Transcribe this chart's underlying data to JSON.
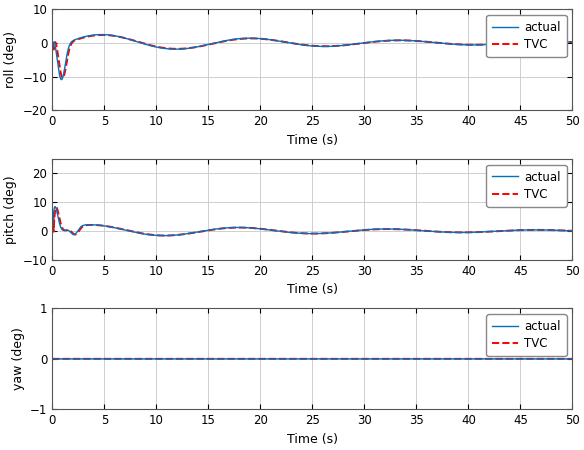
{
  "time_end": 50,
  "dt": 0.005,
  "subplots": [
    {
      "ylabel": "roll (deg)",
      "ylim": [
        -20,
        10
      ],
      "yticks": [
        -20,
        -10,
        0,
        10
      ]
    },
    {
      "ylabel": "pitch (deg)",
      "ylim": [
        -10,
        25
      ],
      "yticks": [
        -10,
        0,
        10,
        20
      ]
    },
    {
      "ylabel": "yaw (deg)",
      "ylim": [
        -1,
        1
      ],
      "yticks": [
        -1,
        0,
        1
      ]
    }
  ],
  "xlabel": "Time (s)",
  "xticks": [
    0,
    5,
    10,
    15,
    20,
    25,
    30,
    35,
    40,
    45,
    50
  ],
  "actual_color": "#0072BD",
  "tvc_color": "#FF0000",
  "grid_color": "#c8c8c8",
  "bg_color": "#ffffff",
  "actual_lw": 1.0,
  "tvc_lw": 1.4,
  "legend_labels": [
    "actual",
    "TVC"
  ],
  "legend_fontsize": 8.5,
  "axis_label_fontsize": 9,
  "tick_fontsize": 8.5
}
